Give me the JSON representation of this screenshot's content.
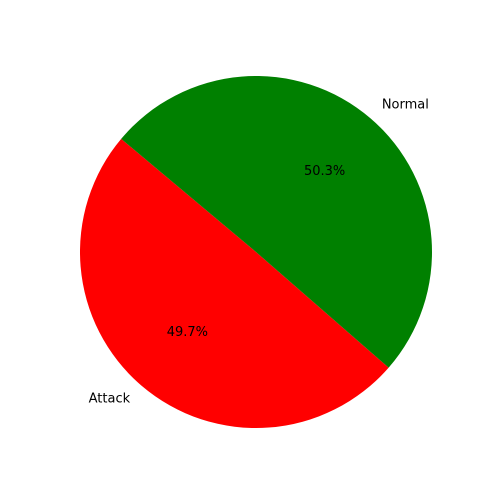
{
  "chart_data": {
    "type": "pie",
    "categories": [
      "Attack",
      "Normal"
    ],
    "values": [
      49.7,
      50.3
    ],
    "value_labels": [
      "49.7%",
      "50.3%"
    ],
    "colors": [
      "#ff0000",
      "#008000"
    ],
    "start_angle_deg": 140,
    "direction": "counterclockwise",
    "title": "",
    "legend": "none"
  }
}
